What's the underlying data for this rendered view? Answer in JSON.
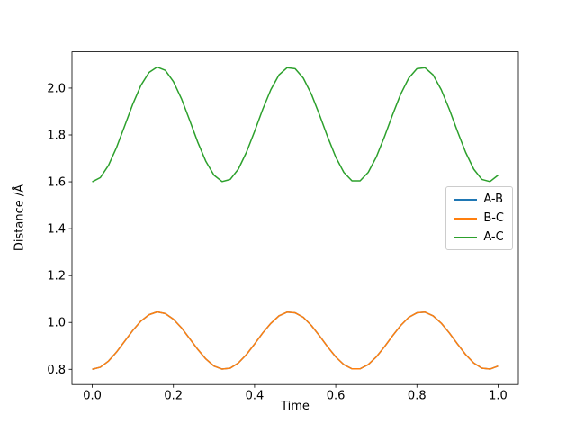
{
  "chart_data": {
    "type": "line",
    "title": "",
    "xlabel": "Time",
    "ylabel": "Distance /Å",
    "xlim": [
      -0.05,
      1.05
    ],
    "ylim": [
      0.735,
      2.155
    ],
    "grid": false,
    "legend_position": "center right",
    "xticks": [
      0.0,
      0.2,
      0.4,
      0.6,
      0.8,
      1.0
    ],
    "xtick_labels": [
      "0.0",
      "0.2",
      "0.4",
      "0.6",
      "0.8",
      "1.0"
    ],
    "yticks": [
      0.8,
      1.0,
      1.2,
      1.4,
      1.6,
      1.8,
      2.0
    ],
    "ytick_labels": [
      "0.8",
      "1.0",
      "1.2",
      "1.4",
      "1.6",
      "1.8",
      "2.0"
    ],
    "x": [
      0.0,
      0.02,
      0.04,
      0.06,
      0.08,
      0.1,
      0.12,
      0.14,
      0.16,
      0.18,
      0.2,
      0.22,
      0.24,
      0.26,
      0.28,
      0.3,
      0.32,
      0.34,
      0.36,
      0.38,
      0.4,
      0.42,
      0.44,
      0.46,
      0.48,
      0.5,
      0.52,
      0.54,
      0.56,
      0.58,
      0.6,
      0.62,
      0.64,
      0.66,
      0.68,
      0.7,
      0.72,
      0.74,
      0.76,
      0.78,
      0.8,
      0.82,
      0.84,
      0.86,
      0.88,
      0.9,
      0.92,
      0.94,
      0.96,
      0.98,
      1.0
    ],
    "series": [
      {
        "name": "A-B",
        "color": "#1f77b4",
        "values": [
          0.8,
          0.809,
          0.835,
          0.874,
          0.92,
          0.966,
          1.006,
          1.033,
          1.045,
          1.038,
          1.014,
          0.977,
          0.931,
          0.885,
          0.844,
          0.814,
          0.801,
          0.805,
          0.827,
          0.863,
          0.908,
          0.955,
          0.996,
          1.028,
          1.044,
          1.041,
          1.022,
          0.987,
          0.943,
          0.896,
          0.853,
          0.82,
          0.802,
          0.802,
          0.82,
          0.853,
          0.896,
          0.943,
          0.987,
          1.022,
          1.041,
          1.044,
          1.028,
          0.997,
          0.955,
          0.908,
          0.863,
          0.827,
          0.805,
          0.801,
          0.814
        ]
      },
      {
        "name": "B-C",
        "color": "#ff7f0e",
        "values": [
          0.8,
          0.809,
          0.835,
          0.874,
          0.92,
          0.966,
          1.006,
          1.033,
          1.045,
          1.038,
          1.014,
          0.977,
          0.931,
          0.885,
          0.844,
          0.814,
          0.801,
          0.805,
          0.827,
          0.863,
          0.908,
          0.955,
          0.996,
          1.028,
          1.044,
          1.041,
          1.022,
          0.987,
          0.943,
          0.896,
          0.853,
          0.82,
          0.802,
          0.802,
          0.82,
          0.853,
          0.896,
          0.943,
          0.987,
          1.022,
          1.041,
          1.044,
          1.028,
          0.997,
          0.955,
          0.908,
          0.863,
          0.827,
          0.805,
          0.801,
          0.814
        ]
      },
      {
        "name": "A-C",
        "color": "#2ca02c",
        "values": [
          1.6,
          1.618,
          1.67,
          1.747,
          1.839,
          1.932,
          2.012,
          2.067,
          2.09,
          2.076,
          2.028,
          1.954,
          1.863,
          1.769,
          1.687,
          1.628,
          1.601,
          1.61,
          1.654,
          1.726,
          1.815,
          1.909,
          1.993,
          2.056,
          2.087,
          2.083,
          2.043,
          1.974,
          1.886,
          1.792,
          1.706,
          1.64,
          1.604,
          1.604,
          1.64,
          1.706,
          1.792,
          1.886,
          1.974,
          2.043,
          2.083,
          2.087,
          2.056,
          1.993,
          1.909,
          1.815,
          1.726,
          1.654,
          1.61,
          1.601,
          1.628
        ]
      }
    ]
  }
}
